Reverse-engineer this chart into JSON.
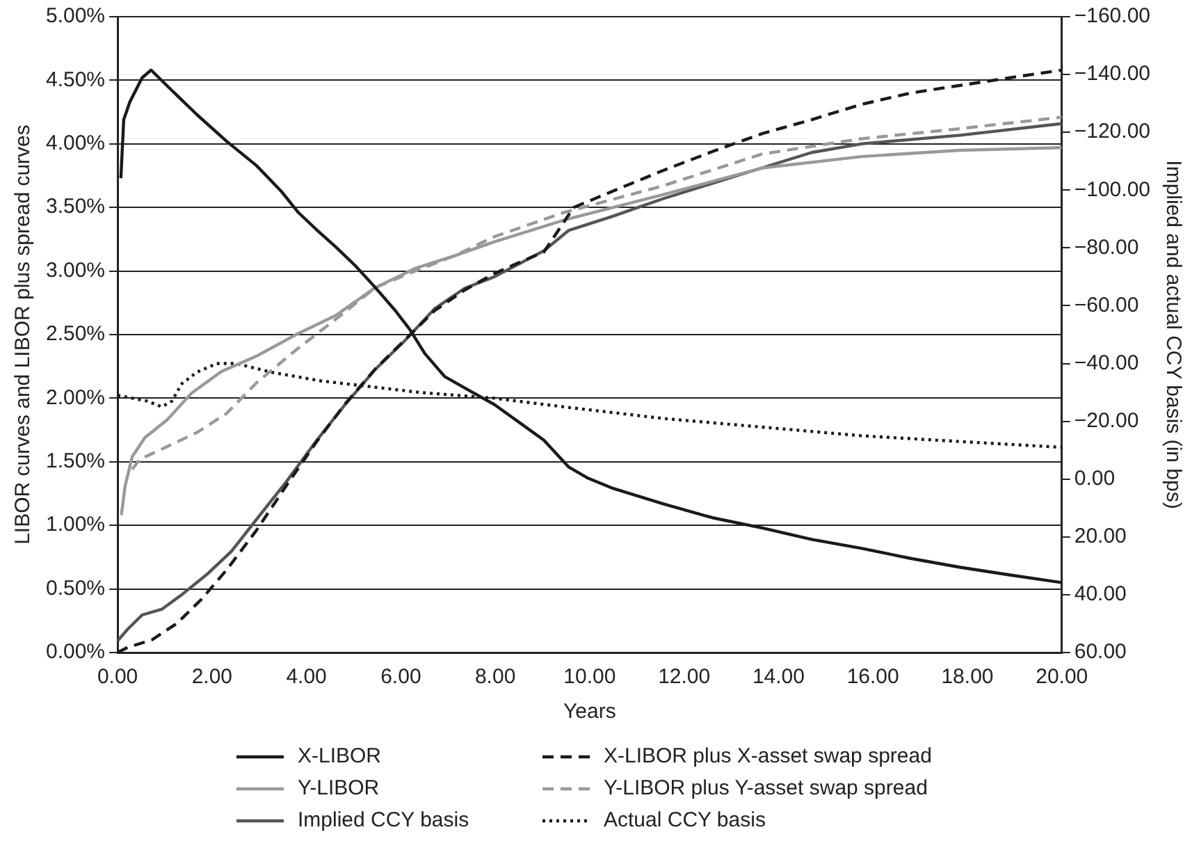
{
  "chart_data": {
    "type": "line",
    "xlabel": "Years",
    "ylabel": "LIBOR curves and LIBOR plus spread curves",
    "y2label": "Implied and actual CCY basis (in bps)",
    "xlim": [
      0,
      20
    ],
    "xticks": [
      {
        "value": 0,
        "label": "0.00"
      },
      {
        "value": 2,
        "label": "2.00"
      },
      {
        "value": 4,
        "label": "4.00"
      },
      {
        "value": 6,
        "label": "6.00"
      },
      {
        "value": 8,
        "label": "8.00"
      },
      {
        "value": 10,
        "label": "10.00"
      },
      {
        "value": 12,
        "label": "12.00"
      },
      {
        "value": 14,
        "label": "14.00"
      },
      {
        "value": 16,
        "label": "16.00"
      },
      {
        "value": 18,
        "label": "18.00"
      },
      {
        "value": 20,
        "label": "20.00"
      }
    ],
    "ylim": [
      0,
      5
    ],
    "yticks": [
      {
        "value": 0,
        "label": "0.00%"
      },
      {
        "value": 0.5,
        "label": "0.50%"
      },
      {
        "value": 1,
        "label": "1.00%"
      },
      {
        "value": 1.5,
        "label": "1.50%"
      },
      {
        "value": 2,
        "label": "2.00%"
      },
      {
        "value": 2.5,
        "label": "2.50%"
      },
      {
        "value": 3,
        "label": "3.00%"
      },
      {
        "value": 3.5,
        "label": "3.50%"
      },
      {
        "value": 4,
        "label": "4.00%"
      },
      {
        "value": 4.5,
        "label": "4.50%"
      },
      {
        "value": 5,
        "label": "5.00%"
      }
    ],
    "y2lim": [
      60,
      -160
    ],
    "y2ticks": [
      {
        "value": 60,
        "label": "60.00"
      },
      {
        "value": 40,
        "label": "40.00"
      },
      {
        "value": 20,
        "label": "20.00"
      },
      {
        "value": 0,
        "label": "0.00"
      },
      {
        "value": -20,
        "label": "−20.00"
      },
      {
        "value": -40,
        "label": "−40.00"
      },
      {
        "value": -60,
        "label": "−60.00"
      },
      {
        "value": -80,
        "label": "−80.00"
      },
      {
        "value": -100,
        "label": "−100.00"
      },
      {
        "value": -120,
        "label": "−120.00"
      },
      {
        "value": -140,
        "label": "−140.00"
      },
      {
        "value": -160,
        "label": "−160.00"
      }
    ],
    "grid": "y",
    "legend": "bottom",
    "marker": "none",
    "series": [
      {
        "name": "X-LIBOR",
        "color": "#1a1a1a",
        "line_style": "solid",
        "x": [
          0.07,
          0.13,
          0.26,
          0.52,
          0.71,
          1.15,
          1.68,
          2.31,
          2.94,
          3.46,
          3.83,
          4.2,
          4.62,
          5.04,
          5.46,
          5.88,
          6.19,
          6.51,
          6.93,
          7.45,
          7.98,
          9.03,
          9.55,
          9.97,
          10.5,
          11.55,
          12.6,
          13.65,
          14.7,
          15.75,
          16.8,
          17.85,
          18.9,
          20
        ],
        "values": [
          3.73,
          4.19,
          4.33,
          4.52,
          4.58,
          4.42,
          4.23,
          4.02,
          3.83,
          3.63,
          3.46,
          3.33,
          3.19,
          3.04,
          2.87,
          2.69,
          2.54,
          2.35,
          2.17,
          2.06,
          1.95,
          1.67,
          1.46,
          1.37,
          1.29,
          1.17,
          1.06,
          0.98,
          0.89,
          0.82,
          0.74,
          0.67,
          0.61,
          0.55
        ]
      },
      {
        "name": "X-LIBOR plus X-asset swap spread",
        "color": "#1a1a1a",
        "line_style": "dashed",
        "x": [
          0,
          0.21,
          0.73,
          1.26,
          1.78,
          2.31,
          2.94,
          3.57,
          4.2,
          4.83,
          5.46,
          6.09,
          6.72,
          7.35,
          7.98,
          8.4,
          9.03,
          9.66,
          10.5,
          11.55,
          12.6,
          13.65,
          14.7,
          15.75,
          16.8,
          17.85,
          18.9,
          20
        ],
        "values": [
          0,
          0.04,
          0.1,
          0.23,
          0.42,
          0.65,
          0.96,
          1.31,
          1.65,
          1.96,
          2.23,
          2.46,
          2.69,
          2.85,
          2.98,
          3.05,
          3.15,
          3.5,
          3.63,
          3.79,
          3.94,
          4.08,
          4.19,
          4.31,
          4.4,
          4.46,
          4.52,
          4.58
        ]
      },
      {
        "name": "Y-LIBOR",
        "color": "#999999",
        "line_style": "solid",
        "x": [
          0.08,
          0.16,
          0.31,
          0.58,
          1.05,
          1.57,
          2.2,
          2.94,
          3.78,
          4.62,
          5.46,
          6.3,
          7.14,
          7.98,
          9.45,
          11.55,
          13.65,
          15.75,
          17.85,
          20
        ],
        "values": [
          1.08,
          1.31,
          1.54,
          1.69,
          1.83,
          2.04,
          2.21,
          2.33,
          2.5,
          2.65,
          2.87,
          3.02,
          3.12,
          3.23,
          3.4,
          3.6,
          3.81,
          3.9,
          3.95,
          3.97
        ]
      },
      {
        "name": "Y-LIBOR plus Y-asset swap spread",
        "color": "#999999",
        "line_style": "dashed",
        "x": [
          0.31,
          0.47,
          0.94,
          1.68,
          2.31,
          2.94,
          3.78,
          4.62,
          5.46,
          6.3,
          7.14,
          7.98,
          9.45,
          11.55,
          13.65,
          15.75,
          17.85,
          20
        ],
        "values": [
          1.44,
          1.52,
          1.6,
          1.73,
          1.88,
          2.12,
          2.38,
          2.62,
          2.87,
          3,
          3.12,
          3.27,
          3.46,
          3.67,
          3.92,
          4.04,
          4.12,
          4.21
        ]
      },
      {
        "name": "Implied CCY basis",
        "color": "#555555",
        "line_style": "solid",
        "axis": "y2",
        "x": [
          0,
          0.21,
          0.52,
          0.94,
          1.36,
          1.89,
          2.41,
          2.94,
          3.57,
          4.2,
          4.83,
          5.46,
          6.09,
          6.72,
          7.35,
          7.98,
          9.03,
          9.55,
          10.5,
          11.55,
          13.12,
          14.7,
          15.75,
          17.85,
          20
        ],
        "values": [
          56,
          52,
          47,
          45,
          40,
          33,
          25,
          14,
          1,
          -13,
          -26,
          -38,
          -48,
          -59,
          -66,
          -70,
          -79,
          -86,
          -91,
          -97,
          -105,
          -113,
          -116,
          -119,
          -123
        ]
      },
      {
        "name": "Actual CCY basis",
        "color": "#1a1a1a",
        "line_style": "dotted",
        "axis": "y2",
        "x": [
          0,
          0.63,
          0.94,
          1.15,
          1.36,
          1.68,
          2.1,
          2.31,
          2.52,
          3.25,
          4.3,
          5.35,
          6.4,
          7.98,
          9.45,
          11.55,
          13.65,
          15.75,
          17.85,
          20
        ],
        "values": [
          -29,
          -27,
          -25,
          -27,
          -33,
          -37,
          -40,
          -40,
          -40,
          -37,
          -34,
          -32,
          -30,
          -28,
          -25,
          -21,
          -18,
          -15,
          -13,
          -11
        ]
      }
    ]
  }
}
